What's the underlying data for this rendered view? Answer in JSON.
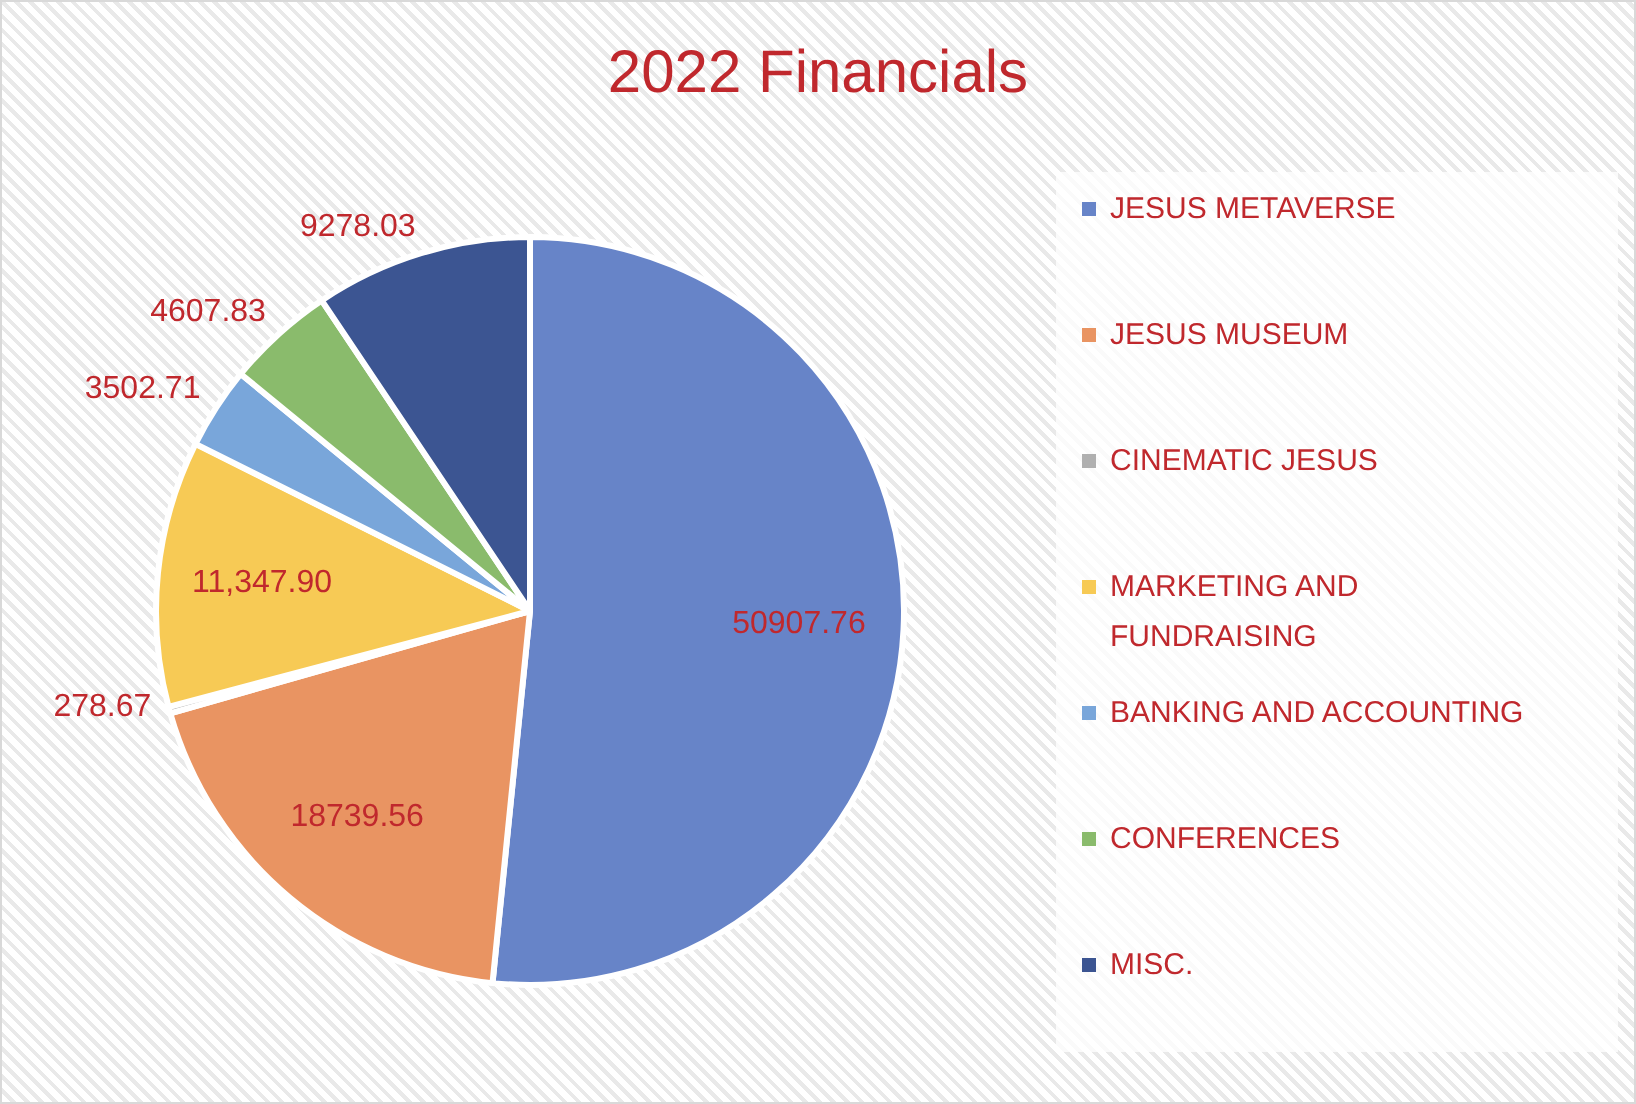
{
  "chart_data": {
    "type": "pie",
    "title": "2022 Financials",
    "categories": [
      "JESUS METAVERSE",
      "JESUS MUSEUM",
      "CINEMATIC JESUS",
      "MARKETING AND FUNDRAISING",
      "BANKING AND ACCOUNTING",
      "CONFERENCES",
      "MISC."
    ],
    "values": [
      50907.76,
      18739.56,
      278.67,
      11347.9,
      3502.71,
      4607.83,
      9278.03
    ],
    "colors": [
      "#6784c8",
      "#e99462",
      "#b0b0b0",
      "#f7ca55",
      "#79a6da",
      "#8abb6c",
      "#3c5592"
    ],
    "value_labels": [
      "50907.76",
      "18739.56",
      "278.67",
      "11,347.90",
      "3502.71",
      "4607.83",
      "9278.03"
    ],
    "legend": "right"
  }
}
